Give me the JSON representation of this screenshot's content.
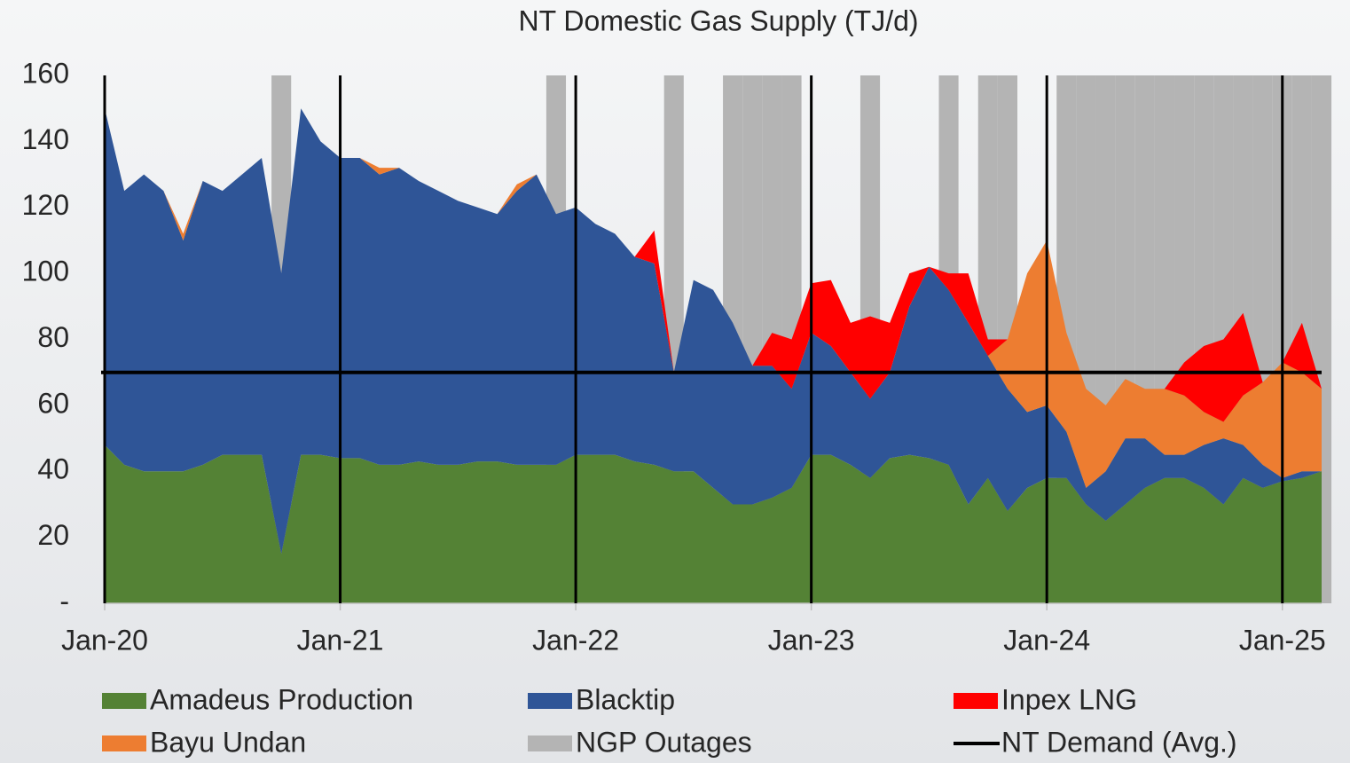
{
  "chart_data": {
    "type": "area",
    "title": "NT Domestic Gas Supply (TJ/d)",
    "x": [
      "2020-01",
      "2020-02",
      "2020-03",
      "2020-04",
      "2020-05",
      "2020-06",
      "2020-07",
      "2020-08",
      "2020-09",
      "2020-10",
      "2020-11",
      "2020-12",
      "2021-01",
      "2021-02",
      "2021-03",
      "2021-04",
      "2021-05",
      "2021-06",
      "2021-07",
      "2021-08",
      "2021-09",
      "2021-10",
      "2021-11",
      "2021-12",
      "2022-01",
      "2022-02",
      "2022-03",
      "2022-04",
      "2022-05",
      "2022-06",
      "2022-07",
      "2022-08",
      "2022-09",
      "2022-10",
      "2022-11",
      "2022-12",
      "2023-01",
      "2023-02",
      "2023-03",
      "2023-04",
      "2023-05",
      "2023-06",
      "2023-07",
      "2023-08",
      "2023-09",
      "2023-10",
      "2023-11",
      "2023-12",
      "2024-01",
      "2024-02",
      "2024-03",
      "2024-04",
      "2024-05",
      "2024-06",
      "2024-07",
      "2024-08",
      "2024-09",
      "2024-10",
      "2024-11",
      "2024-12",
      "2025-01",
      "2025-02",
      "2025-03"
    ],
    "xlim": [
      "2020-01",
      "2025-03"
    ],
    "xticks": [
      {
        "value": "2020-01",
        "label": "Jan-20"
      },
      {
        "value": "2021-01",
        "label": "Jan-21"
      },
      {
        "value": "2022-01",
        "label": "Jan-22"
      },
      {
        "value": "2023-01",
        "label": "Jan-23"
      },
      {
        "value": "2024-01",
        "label": "Jan-24"
      },
      {
        "value": "2025-01",
        "label": "Jan-25"
      }
    ],
    "ylim": [
      0,
      160
    ],
    "yticks": [
      {
        "value": 0,
        "label": "-"
      },
      20,
      40,
      60,
      80,
      100,
      120,
      140,
      160
    ],
    "grid": "x",
    "series": [
      {
        "name": "Amadeus Production",
        "color": "#548235",
        "values": [
          48,
          42,
          40,
          40,
          40,
          42,
          45,
          45,
          45,
          15,
          45,
          45,
          44,
          44,
          42,
          42,
          43,
          42,
          42,
          43,
          43,
          42,
          42,
          42,
          45,
          45,
          45,
          43,
          42,
          40,
          40,
          35,
          30,
          30,
          32,
          35,
          45,
          45,
          42,
          38,
          44,
          45,
          44,
          42,
          30,
          38,
          28,
          35,
          38,
          38,
          30,
          25,
          30,
          35,
          38,
          38,
          35,
          30,
          38,
          35,
          37,
          38,
          40
        ]
      },
      {
        "name": "Blacktip",
        "color": "#2f5597",
        "values": [
          102,
          83,
          90,
          85,
          70,
          86,
          80,
          85,
          90,
          85,
          105,
          95,
          91,
          91,
          88,
          90,
          85,
          83,
          80,
          77,
          75,
          83,
          88,
          76,
          75,
          70,
          67,
          62,
          61,
          30,
          58,
          60,
          55,
          42,
          40,
          30,
          37,
          33,
          28,
          24,
          26,
          45,
          58,
          53,
          55,
          37,
          37,
          23,
          22,
          14,
          5,
          15,
          20,
          15,
          7,
          7,
          13,
          20,
          10,
          7,
          1,
          2,
          0
        ]
      },
      {
        "name": "Bayu Undan",
        "color": "#ed7d31",
        "values": [
          0,
          0,
          0,
          0,
          2,
          0,
          0,
          0,
          0,
          0,
          0,
          0,
          0,
          0,
          2,
          0,
          0,
          0,
          0,
          0,
          0,
          2,
          0,
          0,
          0,
          0,
          0,
          0,
          0,
          0,
          0,
          0,
          0,
          0,
          0,
          0,
          0,
          0,
          0,
          0,
          0,
          0,
          0,
          0,
          0,
          0,
          15,
          42,
          50,
          30,
          30,
          20,
          18,
          15,
          20,
          18,
          10,
          5,
          15,
          25,
          35,
          30,
          25
        ]
      },
      {
        "name": "Inpex LNG",
        "color": "#ff0000",
        "values": [
          0,
          0,
          0,
          0,
          0,
          0,
          0,
          0,
          0,
          0,
          0,
          0,
          0,
          0,
          0,
          0,
          0,
          0,
          0,
          0,
          0,
          0,
          0,
          0,
          0,
          0,
          0,
          0,
          10,
          0,
          0,
          0,
          0,
          0,
          10,
          15,
          15,
          20,
          15,
          25,
          15,
          10,
          0,
          5,
          15,
          5,
          0,
          0,
          0,
          0,
          0,
          0,
          0,
          0,
          0,
          10,
          20,
          25,
          25,
          0,
          0,
          15,
          0
        ]
      },
      {
        "name": "NGP Outages",
        "color": "#b4b4b4",
        "type": "bar",
        "values": [
          0,
          0,
          0,
          0,
          0,
          0,
          0,
          0,
          0,
          160,
          0,
          0,
          0,
          0,
          0,
          0,
          0,
          0,
          0,
          0,
          0,
          0,
          0,
          160,
          0,
          0,
          0,
          0,
          0,
          160,
          0,
          0,
          160,
          160,
          160,
          160,
          0,
          0,
          0,
          160,
          0,
          0,
          0,
          160,
          0,
          160,
          160,
          0,
          0,
          160,
          160,
          160,
          160,
          160,
          160,
          160,
          160,
          160,
          160,
          160,
          160,
          160,
          160
        ]
      }
    ],
    "demand": {
      "name": "NT Demand (Avg.)",
      "color": "#000000",
      "value": 70
    }
  }
}
